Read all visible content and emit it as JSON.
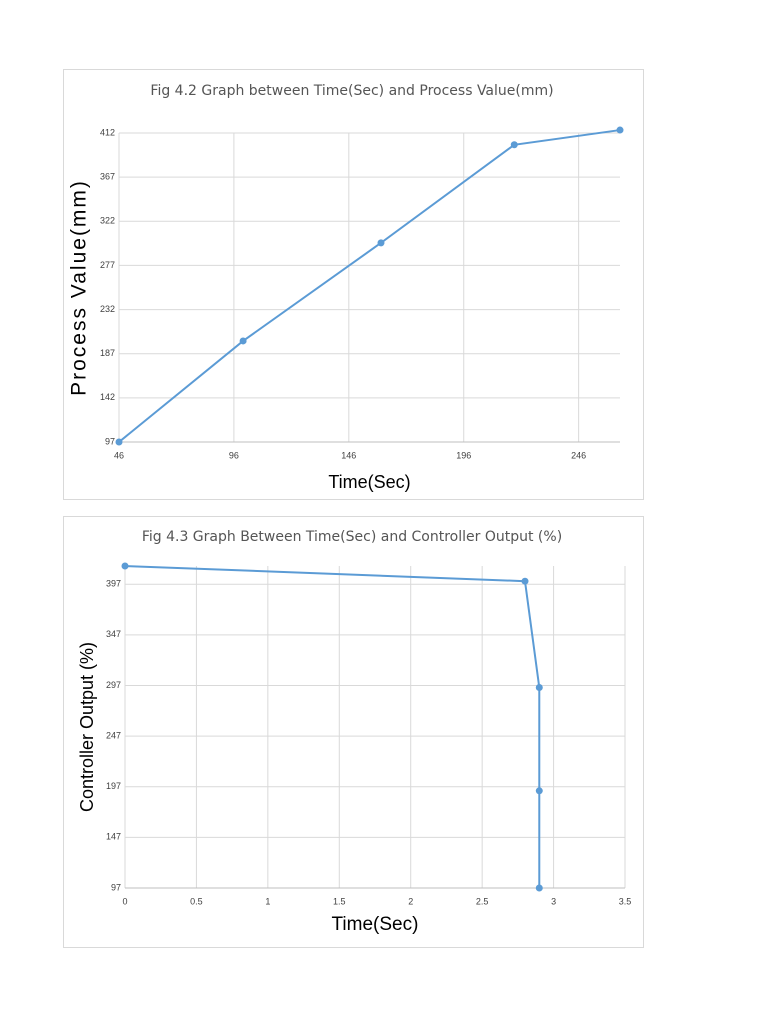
{
  "chart_data": [
    {
      "type": "line",
      "title": "Fig 4.2 Graph between Time(Sec) and Process Value(mm)",
      "x_label": "Time(Sec)",
      "y_label": "Process Value(mm)",
      "x": [
        46,
        100,
        160,
        218,
        264
      ],
      "color": "#5b9bd5",
      "series": [
        {
          "name": "Process Value",
          "color": "#5b9bd5",
          "values": [
            97,
            200,
            300,
            400,
            415
          ]
        }
      ],
      "xlim": [
        46,
        264
      ],
      "xticks": [
        46,
        96,
        146,
        196,
        246
      ],
      "ylim": [
        97,
        412
      ],
      "yticks": [
        97,
        142,
        187,
        232,
        277,
        322,
        367,
        412
      ],
      "grid": true
    },
    {
      "type": "line",
      "title": "Fig 4.3 Graph Between Time(Sec) and Controller Output (%)",
      "x_label": "Time(Sec)",
      "y_label": "Controller Output (%)",
      "x": [
        0,
        2.8,
        2.9,
        2.9,
        2.9
      ],
      "color": "#5b9bd5",
      "series": [
        {
          "name": "Controller Output",
          "color": "#5b9bd5",
          "values": [
            415,
            400,
            295,
            193,
            97
          ]
        }
      ],
      "xlim": [
        0,
        3.5
      ],
      "xticks": [
        0,
        0.5,
        1,
        1.5,
        2,
        2.5,
        3,
        3.5
      ],
      "ylim": [
        97,
        415
      ],
      "yticks": [
        97,
        147,
        197,
        247,
        297,
        347,
        397
      ],
      "grid": true
    }
  ]
}
